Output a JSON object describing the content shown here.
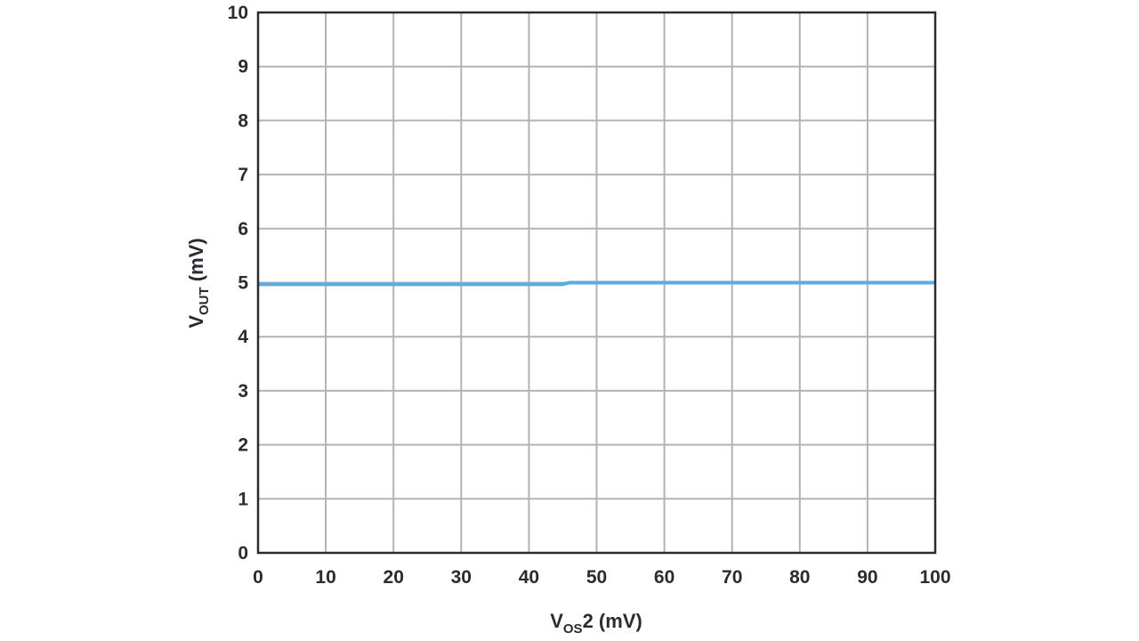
{
  "chart_data": {
    "type": "line",
    "title": "",
    "xlabel": {
      "main": "V",
      "sub": "OS",
      "rest": "2 (mV)"
    },
    "ylabel": {
      "main": "V",
      "sub": "OUT",
      "rest": " (mV)"
    },
    "xlim": [
      0,
      100
    ],
    "ylim": [
      0,
      10
    ],
    "x_ticks": [
      "0",
      "10",
      "20",
      "30",
      "40",
      "50",
      "60",
      "70",
      "80",
      "90",
      "100"
    ],
    "y_ticks": [
      "0",
      "1",
      "2",
      "3",
      "4",
      "5",
      "6",
      "7",
      "8",
      "9",
      "10"
    ],
    "grid": true,
    "legend": "none",
    "series": [
      {
        "color": "#5aaedf",
        "x": [
          0,
          10,
          20,
          30,
          40,
          45,
          46,
          50,
          60,
          70,
          80,
          90,
          100
        ],
        "y": [
          4.97,
          4.97,
          4.97,
          4.97,
          4.97,
          4.97,
          5.0,
          5.0,
          5.0,
          5.0,
          5.0,
          5.0,
          5.0
        ]
      }
    ],
    "colors": {
      "grid": "#b3b3b3",
      "frame": "#2b2b33",
      "text": "#2b2b33"
    }
  }
}
